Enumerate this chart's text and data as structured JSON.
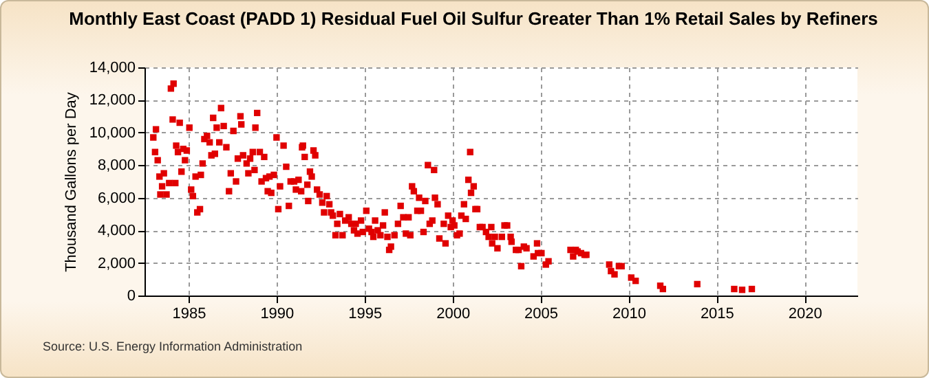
{
  "chart_data": {
    "type": "scatter",
    "title": "Monthly East Coast (PADD 1) Residual Fuel Oil Sulfur Greater Than 1% Retail Sales by Refiners",
    "ylabel": "Thousand Gallons per Day",
    "annotations": [
      "Source: U.S. Energy Information Administration"
    ],
    "x": [
      1983.0,
      1983.1,
      1983.15,
      1983.25,
      1983.35,
      1983.4,
      1983.5,
      1983.6,
      1983.75,
      1983.9,
      1984.0,
      1984.15,
      1984.1,
      1984.25,
      1984.3,
      1984.4,
      1984.5,
      1984.6,
      1984.7,
      1984.8,
      1984.9,
      1985.05,
      1985.15,
      1985.25,
      1985.4,
      1985.5,
      1985.65,
      1985.7,
      1985.8,
      1985.9,
      1986.05,
      1986.2,
      1986.3,
      1986.4,
      1986.5,
      1986.6,
      1986.75,
      1986.85,
      1987.0,
      1987.15,
      1987.3,
      1987.4,
      1987.55,
      1987.7,
      1987.8,
      1987.95,
      1988.0,
      1988.1,
      1988.3,
      1988.4,
      1988.5,
      1988.65,
      1988.75,
      1988.8,
      1988.9,
      1989.05,
      1989.15,
      1989.3,
      1989.4,
      1989.5,
      1989.6,
      1989.7,
      1989.85,
      1990.0,
      1990.1,
      1990.2,
      1990.4,
      1990.55,
      1990.7,
      1990.8,
      1991.0,
      1991.1,
      1991.25,
      1991.4,
      1991.45,
      1991.5,
      1991.6,
      1991.75,
      1991.8,
      1991.9,
      1992.0,
      1992.1,
      1992.2,
      1992.3,
      1992.45,
      1992.6,
      1992.7,
      1992.85,
      1993.0,
      1993.1,
      1993.2,
      1993.35,
      1993.45,
      1993.6,
      1993.75,
      1993.9,
      1994.1,
      1994.25,
      1994.4,
      1994.5,
      1994.6,
      1994.8,
      1994.9,
      1995.1,
      1995.25,
      1995.4,
      1995.5,
      1995.6,
      1995.75,
      1995.9,
      1996.05,
      1996.15,
      1996.3,
      1996.4,
      1996.5,
      1996.7,
      1996.9,
      1997.05,
      1997.2,
      1997.35,
      1997.5,
      1997.6,
      1997.7,
      1997.8,
      1998.0,
      1998.1,
      1998.2,
      1998.35,
      1998.45,
      1998.6,
      1998.7,
      1998.85,
      1998.95,
      1999.0,
      1999.15,
      1999.25,
      1999.5,
      1999.6,
      1999.75,
      1999.9,
      2000.0,
      2000.1,
      2000.25,
      2000.4,
      2000.5,
      2000.65,
      2000.75,
      2000.9,
      2001.0,
      2001.05,
      2001.2,
      2001.3,
      2001.4,
      2001.55,
      2001.7,
      2001.9,
      2002.05,
      2002.2,
      2002.25,
      2002.4,
      2002.55,
      2002.8,
      2002.95,
      2003.1,
      2003.3,
      2003.35,
      2003.6,
      2003.75,
      2003.9,
      2004.05,
      2004.2,
      2004.6,
      2004.8,
      2004.85,
      2005.05,
      2005.3,
      2005.45,
      2006.7,
      2006.85,
      2007.0,
      2007.1,
      2007.3,
      2007.5,
      2007.6,
      2008.9,
      2009.0,
      2009.2,
      2009.45,
      2009.6,
      2010.15,
      2010.4,
      2011.8,
      2011.95,
      2013.9,
      2016.0,
      2016.45,
      2017.0
    ],
    "values": [
      9700,
      8800,
      10200,
      8300,
      7300,
      6200,
      6700,
      7500,
      6200,
      6900,
      12700,
      13000,
      10800,
      6900,
      9200,
      8800,
      10600,
      7600,
      9000,
      8300,
      8900,
      10300,
      6500,
      6100,
      7300,
      5100,
      5300,
      7400,
      8100,
      9600,
      9800,
      9400,
      8600,
      10900,
      8700,
      10300,
      9400,
      11500,
      10400,
      9100,
      6400,
      7500,
      10100,
      7000,
      8400,
      11000,
      10500,
      8600,
      8100,
      7500,
      8400,
      8800,
      7700,
      10300,
      11200,
      8800,
      7000,
      8500,
      7200,
      6400,
      7300,
      6300,
      7400,
      9700,
      5300,
      6700,
      9200,
      7900,
      5500,
      7000,
      7000,
      6500,
      7100,
      6400,
      9100,
      9200,
      8500,
      6800,
      5800,
      7600,
      7300,
      8900,
      8600,
      6500,
      6200,
      5700,
      5100,
      6100,
      5600,
      5100,
      4900,
      3700,
      4400,
      5000,
      3700,
      4600,
      4800,
      4400,
      4000,
      4400,
      3800,
      4600,
      3900,
      5200,
      4100,
      3900,
      3600,
      4600,
      4000,
      3700,
      4300,
      5100,
      3600,
      2800,
      3000,
      3700,
      4400,
      5500,
      4800,
      3800,
      4800,
      3700,
      6700,
      6400,
      5200,
      6000,
      5200,
      3900,
      5800,
      8000,
      4400,
      4600,
      7700,
      6000,
      5600,
      3500,
      4400,
      3200,
      4900,
      4200,
      4600,
      4300,
      3700,
      3800,
      4900,
      5600,
      4700,
      7100,
      8800,
      6300,
      6700,
      5300,
      5300,
      4200,
      4200,
      3900,
      3600,
      4200,
      3200,
      3600,
      2900,
      3600,
      4300,
      4300,
      3600,
      3300,
      2800,
      2800,
      1800,
      3000,
      2900,
      2400,
      3200,
      2600,
      2600,
      1900,
      2100,
      2800,
      2400,
      2800,
      2700,
      2600,
      2500,
      2500,
      1900,
      1500,
      1300,
      1800,
      1800,
      1100,
      900,
      600,
      400,
      700,
      400,
      350,
      400
    ],
    "color": "#e00000",
    "marker": "square",
    "grid": true,
    "xlim": [
      1982.5,
      2023
    ],
    "xticks": [
      1985,
      1990,
      1995,
      2000,
      2005,
      2010,
      2015,
      2020
    ],
    "ylim": [
      0,
      14000
    ],
    "yticks": [
      0,
      {
        "value": 2000,
        "label": "2,000"
      },
      {
        "value": 4000,
        "label": "4,000"
      },
      {
        "value": 6000,
        "label": "6,000"
      },
      {
        "value": 8000,
        "label": "8,000"
      },
      {
        "value": 10000,
        "label": "10,000"
      },
      {
        "value": 12000,
        "label": "12,000"
      },
      {
        "value": 14000,
        "label": "14,000"
      }
    ]
  }
}
